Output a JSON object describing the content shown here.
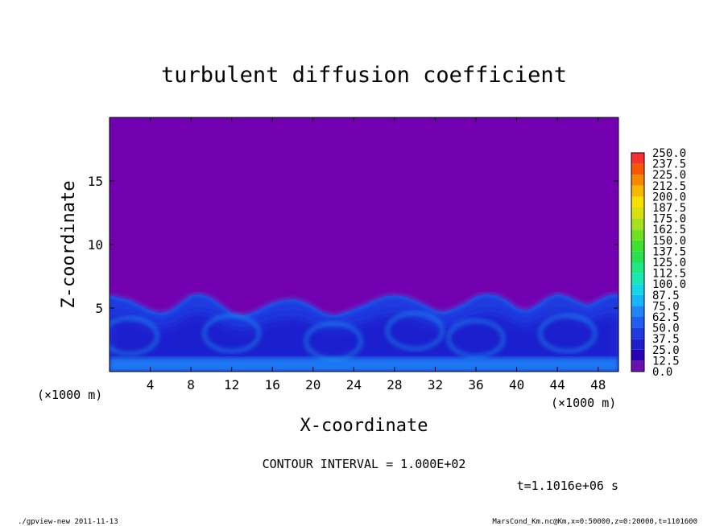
{
  "chart_data": {
    "type": "heatmap",
    "title": "turbulent diffusion coefficient",
    "xlabel": "X-coordinate",
    "ylabel": "Z-coordinate",
    "x_units": "(×1000 m)",
    "xlim": [
      0,
      50
    ],
    "ylim": [
      0,
      20
    ],
    "x_ticks": [
      4,
      8,
      12,
      16,
      20,
      24,
      28,
      32,
      36,
      40,
      44,
      48
    ],
    "y_ticks": [
      5,
      10,
      15
    ],
    "colorbar_levels": [
      "0.0",
      "12.5",
      "25.0",
      "37.5",
      "50.0",
      "62.5",
      "75.0",
      "87.5",
      "100.0",
      "112.5",
      "125.0",
      "137.5",
      "150.0",
      "162.5",
      "175.0",
      "187.5",
      "200.0",
      "212.5",
      "225.0",
      "237.5",
      "250.0"
    ],
    "colorbar_colors": [
      "#6a0fb0",
      "#2a00b4",
      "#1e1ecc",
      "#1f3be0",
      "#1f5ef0",
      "#1f86f8",
      "#16b4f8",
      "#14d8e8",
      "#18e8b4",
      "#1ee884",
      "#28e050",
      "#40e030",
      "#70e020",
      "#a8e020",
      "#d8e010",
      "#f8e000",
      "#f8b800",
      "#f88800",
      "#f85800",
      "#f83030",
      "#f89090"
    ],
    "background_color": "#7300b0",
    "turbulent_layer_top": [
      6.0,
      5.8,
      5.6,
      5.2,
      4.8,
      4.6,
      4.8,
      5.4,
      6.0,
      6.1,
      5.8,
      5.2,
      4.6,
      4.4,
      4.6,
      5.0,
      5.4,
      5.6,
      5.7,
      5.5,
      5.1,
      4.6,
      4.4,
      4.6,
      4.9,
      5.2,
      5.6,
      5.9,
      6.0,
      5.9,
      5.6,
      5.2,
      4.8,
      4.7,
      5.0,
      5.4,
      5.9,
      6.1,
      6.0,
      5.6,
      5.0,
      4.8,
      5.2,
      5.8,
      6.1,
      5.9,
      5.5,
      5.2,
      5.6,
      6.0,
      6.1
    ],
    "contour_interval": "CONTOUR INTERVAL = 1.000E+02",
    "time": "t=1.1016e+06 s"
  },
  "footer": {
    "left": "./gpview-new   2011-11-13",
    "right": "MarsCond_Km.nc@Km,x=0:50000,z=0:20000,t=1101600"
  }
}
